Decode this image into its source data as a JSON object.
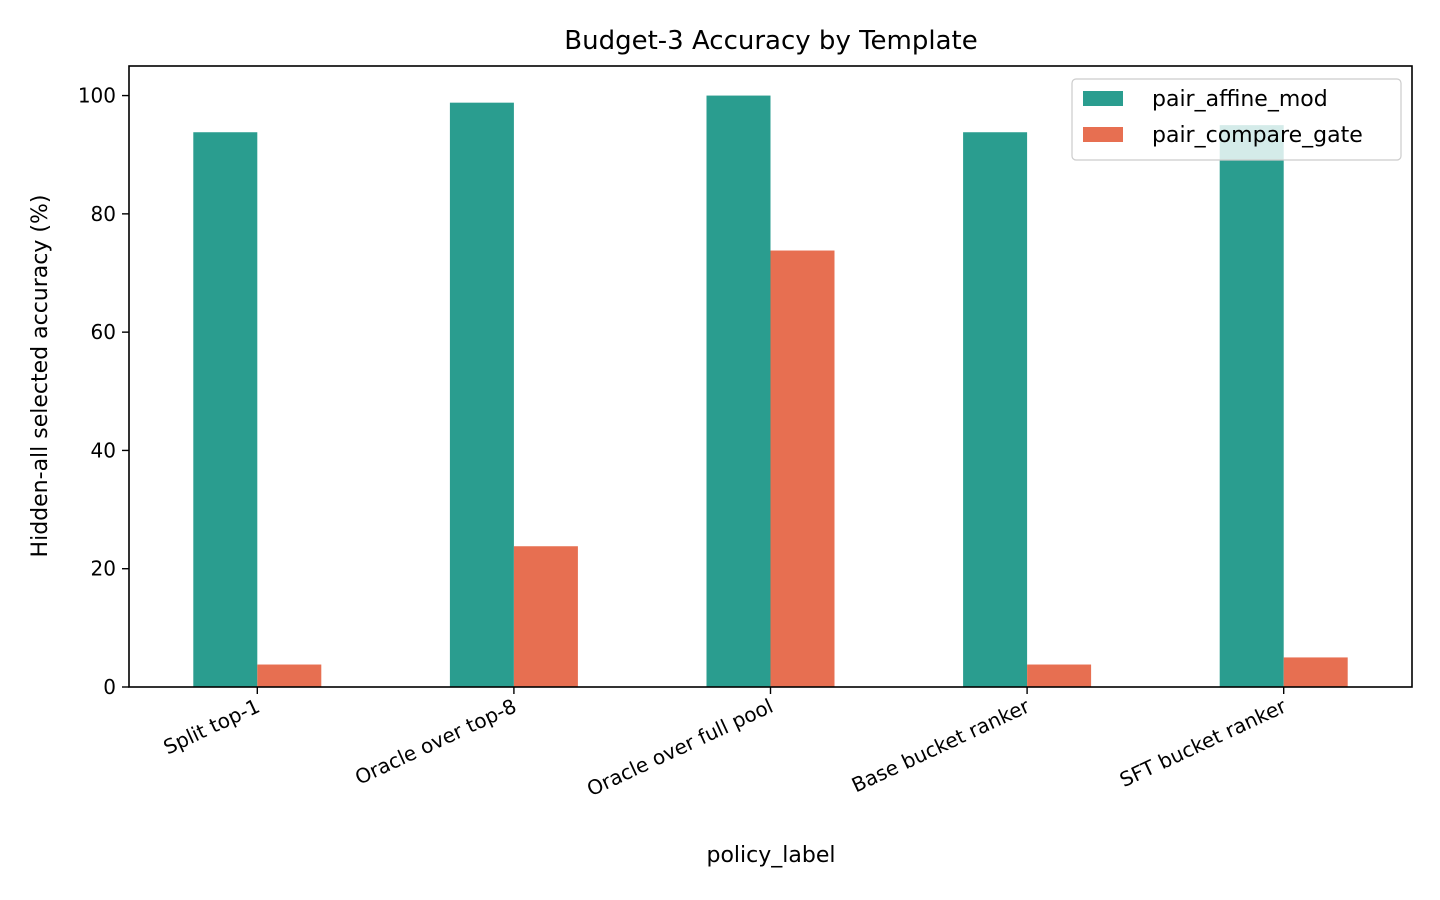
{
  "chart_data": {
    "type": "bar",
    "title": "Budget-3 Accuracy by Template",
    "xlabel": "policy_label",
    "ylabel": "Hidden-all selected accuracy (%)",
    "categories": [
      "Split top-1",
      "Oracle over top-8",
      "Oracle over full pool",
      "Base bucket ranker",
      "SFT bucket ranker"
    ],
    "series": [
      {
        "name": "pair_affine_mod",
        "color": "#2a9d8f",
        "values": [
          93.8,
          98.8,
          100.0,
          93.8,
          95.0
        ]
      },
      {
        "name": "pair_compare_gate",
        "color": "#e76f51",
        "values": [
          3.8,
          23.8,
          73.8,
          3.8,
          5.0
        ]
      }
    ],
    "ylim": [
      0,
      105
    ],
    "yticks": [
      0,
      20,
      40,
      60,
      80,
      100
    ],
    "grid": false,
    "legend_position": "top-right"
  }
}
